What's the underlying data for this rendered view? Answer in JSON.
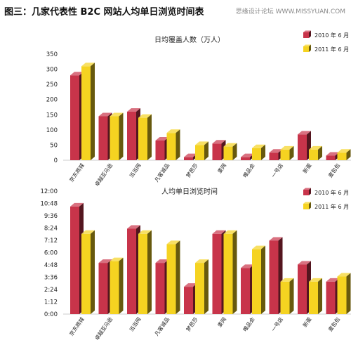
{
  "header": {
    "title": "图三：几家代表性 B2C 网站人均单日浏览时间表",
    "watermark": "思缘设计论坛 WWW.MISSYUAN.COM"
  },
  "colors": {
    "series_2010": "#c8344a",
    "series_2011": "#f5d321"
  },
  "chart_data": [
    {
      "type": "bar",
      "title": "日均覆盖人数（万人）",
      "categories": [
        "京东商城",
        "卓越亚马逊",
        "当当网",
        "凡客诚品",
        "梦芭莎",
        "麦网",
        "唯品会",
        "一号店",
        "新蛋",
        "麦包包"
      ],
      "ylim": [
        0,
        350
      ],
      "yticks": [
        "0",
        "50",
        "100",
        "150",
        "200",
        "250",
        "300",
        "350"
      ],
      "legend_position": "top-right",
      "series": [
        {
          "name": "2010 年 6 月",
          "values": [
            280,
            145,
            160,
            65,
            10,
            55,
            10,
            25,
            85,
            15
          ]
        },
        {
          "name": "2011 年 6 月",
          "values": [
            310,
            145,
            140,
            90,
            50,
            45,
            40,
            35,
            35,
            25
          ]
        }
      ]
    },
    {
      "type": "bar",
      "title": "人均单日浏览时间",
      "categories": [
        "京东商城",
        "卓越亚马逊",
        "当当网",
        "凡客诚品",
        "梦芭莎",
        "麦网",
        "唯品会",
        "一号店",
        "新蛋",
        "麦包包"
      ],
      "ylim": [
        0,
        720
      ],
      "yticks": [
        "0:00",
        "1:12",
        "2:24",
        "3:36",
        "4:48",
        "6:00",
        "7:12",
        "8:24",
        "9:36",
        "10:48",
        "12:00"
      ],
      "legend_position": "top-right",
      "series": [
        {
          "name": "2010 年 6 月",
          "values": [
            630,
            300,
            500,
            300,
            160,
            470,
            270,
            430,
            290,
            190
          ]
        },
        {
          "name": "2011 年 6 月",
          "values": [
            470,
            310,
            470,
            410,
            300,
            470,
            380,
            190,
            190,
            220
          ]
        }
      ]
    }
  ]
}
